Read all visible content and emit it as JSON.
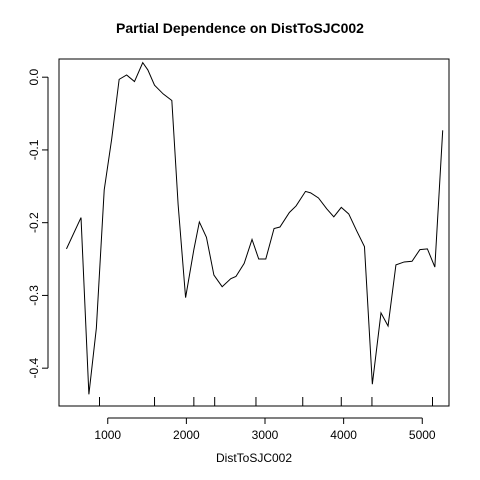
{
  "chart_data": {
    "type": "line",
    "title": "Partial Dependence on DistToSJC002",
    "xlabel": "DistToSJC002",
    "ylabel": "",
    "xlim": [
      380,
      5340
    ],
    "ylim": [
      -0.452,
      0.025
    ],
    "xticks": [
      1000,
      2000,
      3000,
      4000,
      5000
    ],
    "xtick_labels": [
      "1000",
      "2000",
      "3000",
      "4000",
      "5000"
    ],
    "yticks": [
      0.0,
      -0.1,
      -0.2,
      -0.3,
      -0.4
    ],
    "ytick_labels": [
      "0.0",
      "-0.1",
      "-0.2",
      "-0.3",
      "-0.4"
    ],
    "grid": false,
    "rug": [
      895,
      1595,
      2095,
      2360,
      2885,
      3480,
      3970,
      4360,
      5130
    ],
    "series": [
      {
        "x": [
          475,
          660,
          760,
          855,
          955,
          1050,
          1145,
          1240,
          1340,
          1445,
          1510,
          1595,
          1705,
          1815,
          1895,
          1990,
          2095,
          2165,
          2255,
          2350,
          2455,
          2565,
          2630,
          2735,
          2835,
          2920,
          3010,
          3115,
          3190,
          3310,
          3395,
          3515,
          3580,
          3680,
          3785,
          3875,
          3970,
          4065,
          4165,
          4265,
          4365,
          4475,
          4565,
          4665,
          4770,
          4870,
          4970,
          5065,
          5160,
          5260
        ],
        "y": [
          -0.236,
          -0.193,
          -0.436,
          -0.345,
          -0.155,
          -0.085,
          -0.003,
          0.003,
          -0.006,
          0.02,
          0.01,
          -0.011,
          -0.023,
          -0.032,
          -0.175,
          -0.303,
          -0.237,
          -0.199,
          -0.22,
          -0.272,
          -0.288,
          -0.277,
          -0.274,
          -0.256,
          -0.223,
          -0.25,
          -0.25,
          -0.208,
          -0.206,
          -0.186,
          -0.177,
          -0.157,
          -0.159,
          -0.166,
          -0.181,
          -0.192,
          -0.179,
          -0.188,
          -0.211,
          -0.233,
          -0.422,
          -0.324,
          -0.342,
          -0.258,
          -0.254,
          -0.253,
          -0.237,
          -0.236,
          -0.261,
          -0.073
        ]
      }
    ]
  }
}
